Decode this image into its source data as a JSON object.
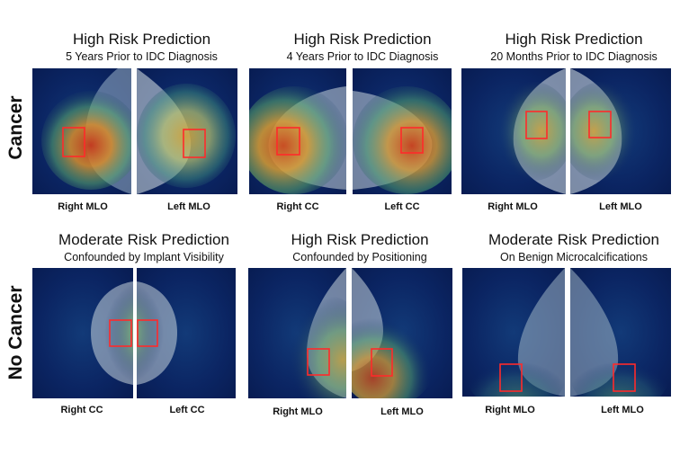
{
  "rows": {
    "cancer": "Cancer",
    "no_cancer": "No Cancer"
  },
  "panels": [
    {
      "title": "High Risk Prediction",
      "subtitle": "5 Years Prior to IDC Diagnosis",
      "left_view": "Right MLO",
      "right_view": "Left MLO"
    },
    {
      "title": "High Risk Prediction",
      "subtitle": "4 Years Prior to IDC Diagnosis",
      "left_view": "Right CC",
      "right_view": "Left CC"
    },
    {
      "title": "High Risk Prediction",
      "subtitle": "20 Months Prior to IDC Diagnosis",
      "left_view": "Right MLO",
      "right_view": "Left MLO"
    },
    {
      "title": "Moderate Risk Prediction",
      "subtitle": "Confounded by Implant Visibility",
      "left_view": "Right CC",
      "right_view": "Left CC"
    },
    {
      "title": "High Risk Prediction",
      "subtitle": "Confounded by Positioning",
      "left_view": "Right MLO",
      "right_view": "Left MLO"
    },
    {
      "title": "Moderate Risk Prediction",
      "subtitle": "On Benign Microcalcifications",
      "left_view": "Right MLO",
      "right_view": "Left MLO"
    }
  ],
  "colors": {
    "background": "#0b2563",
    "roi_box": "#ff2a2a",
    "heat_hot": "#c83a1c",
    "heat_warm": "#d9a437",
    "heat_mid": "#5aa86a"
  }
}
